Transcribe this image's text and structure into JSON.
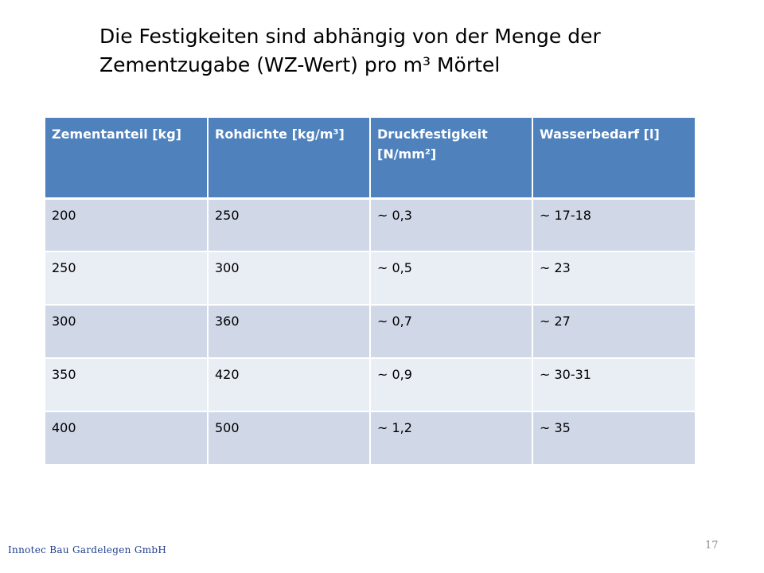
{
  "slide": {
    "title_line1": "Die Festigkeiten sind abhängig von der Menge der",
    "title_line2": "Zementzugabe (WZ-Wert) pro m³ Mörtel",
    "footer_company": "Innotec Bau Gardelegen GmbH",
    "page_number": "17"
  },
  "table": {
    "headers": [
      "Zementanteil [kg]",
      "Rohdichte [kg/m³]",
      "Druckfestigkeit [N/mm²]",
      "Wasserbedarf [l]"
    ],
    "rows": [
      [
        "200",
        "250",
        "~ 0,3",
        "~ 17-18"
      ],
      [
        "250",
        "300",
        "~ 0,5",
        "~ 23"
      ],
      [
        "300",
        "360",
        "~ 0,7",
        "~ 27"
      ],
      [
        "350",
        "420",
        "~ 0,9",
        "~ 30-31"
      ],
      [
        "400",
        "500",
        "~ 1,2",
        "~ 35"
      ]
    ],
    "colors": {
      "header_bg": "#4f81bd",
      "row_odd_bg": "#d0d8e8",
      "row_even_bg": "#e9edf4"
    }
  }
}
